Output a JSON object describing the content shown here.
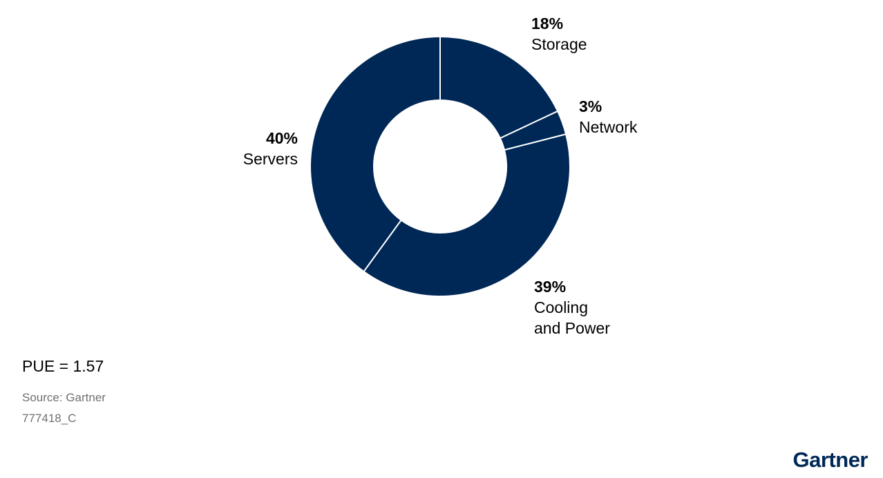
{
  "chart_data": {
    "type": "pie",
    "variant": "donut",
    "slices": [
      {
        "label": "Storage",
        "value": 18,
        "pct_label": "18%"
      },
      {
        "label": "Network",
        "value": 3,
        "pct_label": "3%"
      },
      {
        "label": "Cooling and Power",
        "label_lines": [
          "Cooling",
          "and Power"
        ],
        "value": 39,
        "pct_label": "39%"
      },
      {
        "label": "Servers",
        "value": 40,
        "pct_label": "40%"
      }
    ],
    "start": "12 o'clock",
    "direction": "clockwise",
    "colors": {
      "slice_fill": "#002856",
      "separator": "#ffffff"
    }
  },
  "note": "PUE = 1.57",
  "source": "Source: Gartner",
  "code": "777418_C",
  "logo": "Gartner"
}
